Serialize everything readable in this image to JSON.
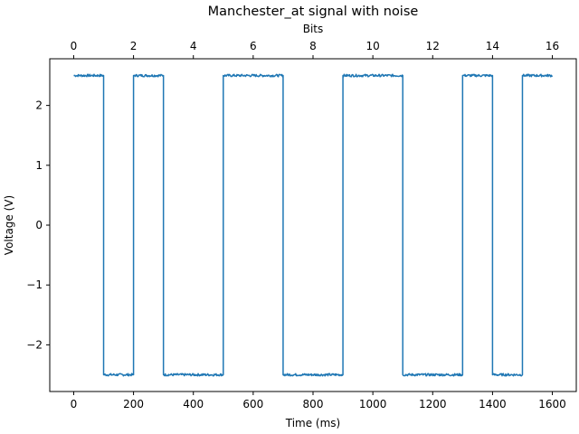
{
  "chart_data": {
    "type": "line",
    "title": "Manchester_at signal with noise",
    "xlabel": "Time (ms)",
    "ylabel": "Voltage (V)",
    "x2label": "Bits",
    "xlim": [
      -80,
      1680
    ],
    "ylim": [
      -2.78,
      2.78
    ],
    "x2lim": [
      -0.8,
      16.8
    ],
    "xticks": [
      0,
      200,
      400,
      600,
      800,
      1000,
      1200,
      1400,
      1600
    ],
    "yticks": [
      -2,
      -1,
      0,
      1,
      2
    ],
    "ytick_labels": [
      "−2",
      "−1",
      "0",
      "1",
      "2"
    ],
    "x2ticks": [
      0,
      2,
      4,
      6,
      8,
      10,
      12,
      14,
      16
    ],
    "grid": false,
    "line_color": "#1f77b4",
    "noise_amplitude": 0.02,
    "series": [
      {
        "x": [
          0,
          100,
          100,
          200,
          200,
          300,
          300,
          500,
          500,
          700,
          700,
          900,
          900,
          1100,
          1100,
          1300,
          1300,
          1400,
          1400,
          1500,
          1500,
          1600
        ],
        "y": [
          2.5,
          2.5,
          -2.5,
          -2.5,
          2.5,
          2.5,
          -2.5,
          -2.5,
          2.5,
          2.5,
          -2.5,
          -2.5,
          2.5,
          2.5,
          -2.5,
          -2.5,
          2.5,
          2.5,
          -2.5,
          -2.5,
          2.5,
          2.5
        ]
      }
    ]
  }
}
